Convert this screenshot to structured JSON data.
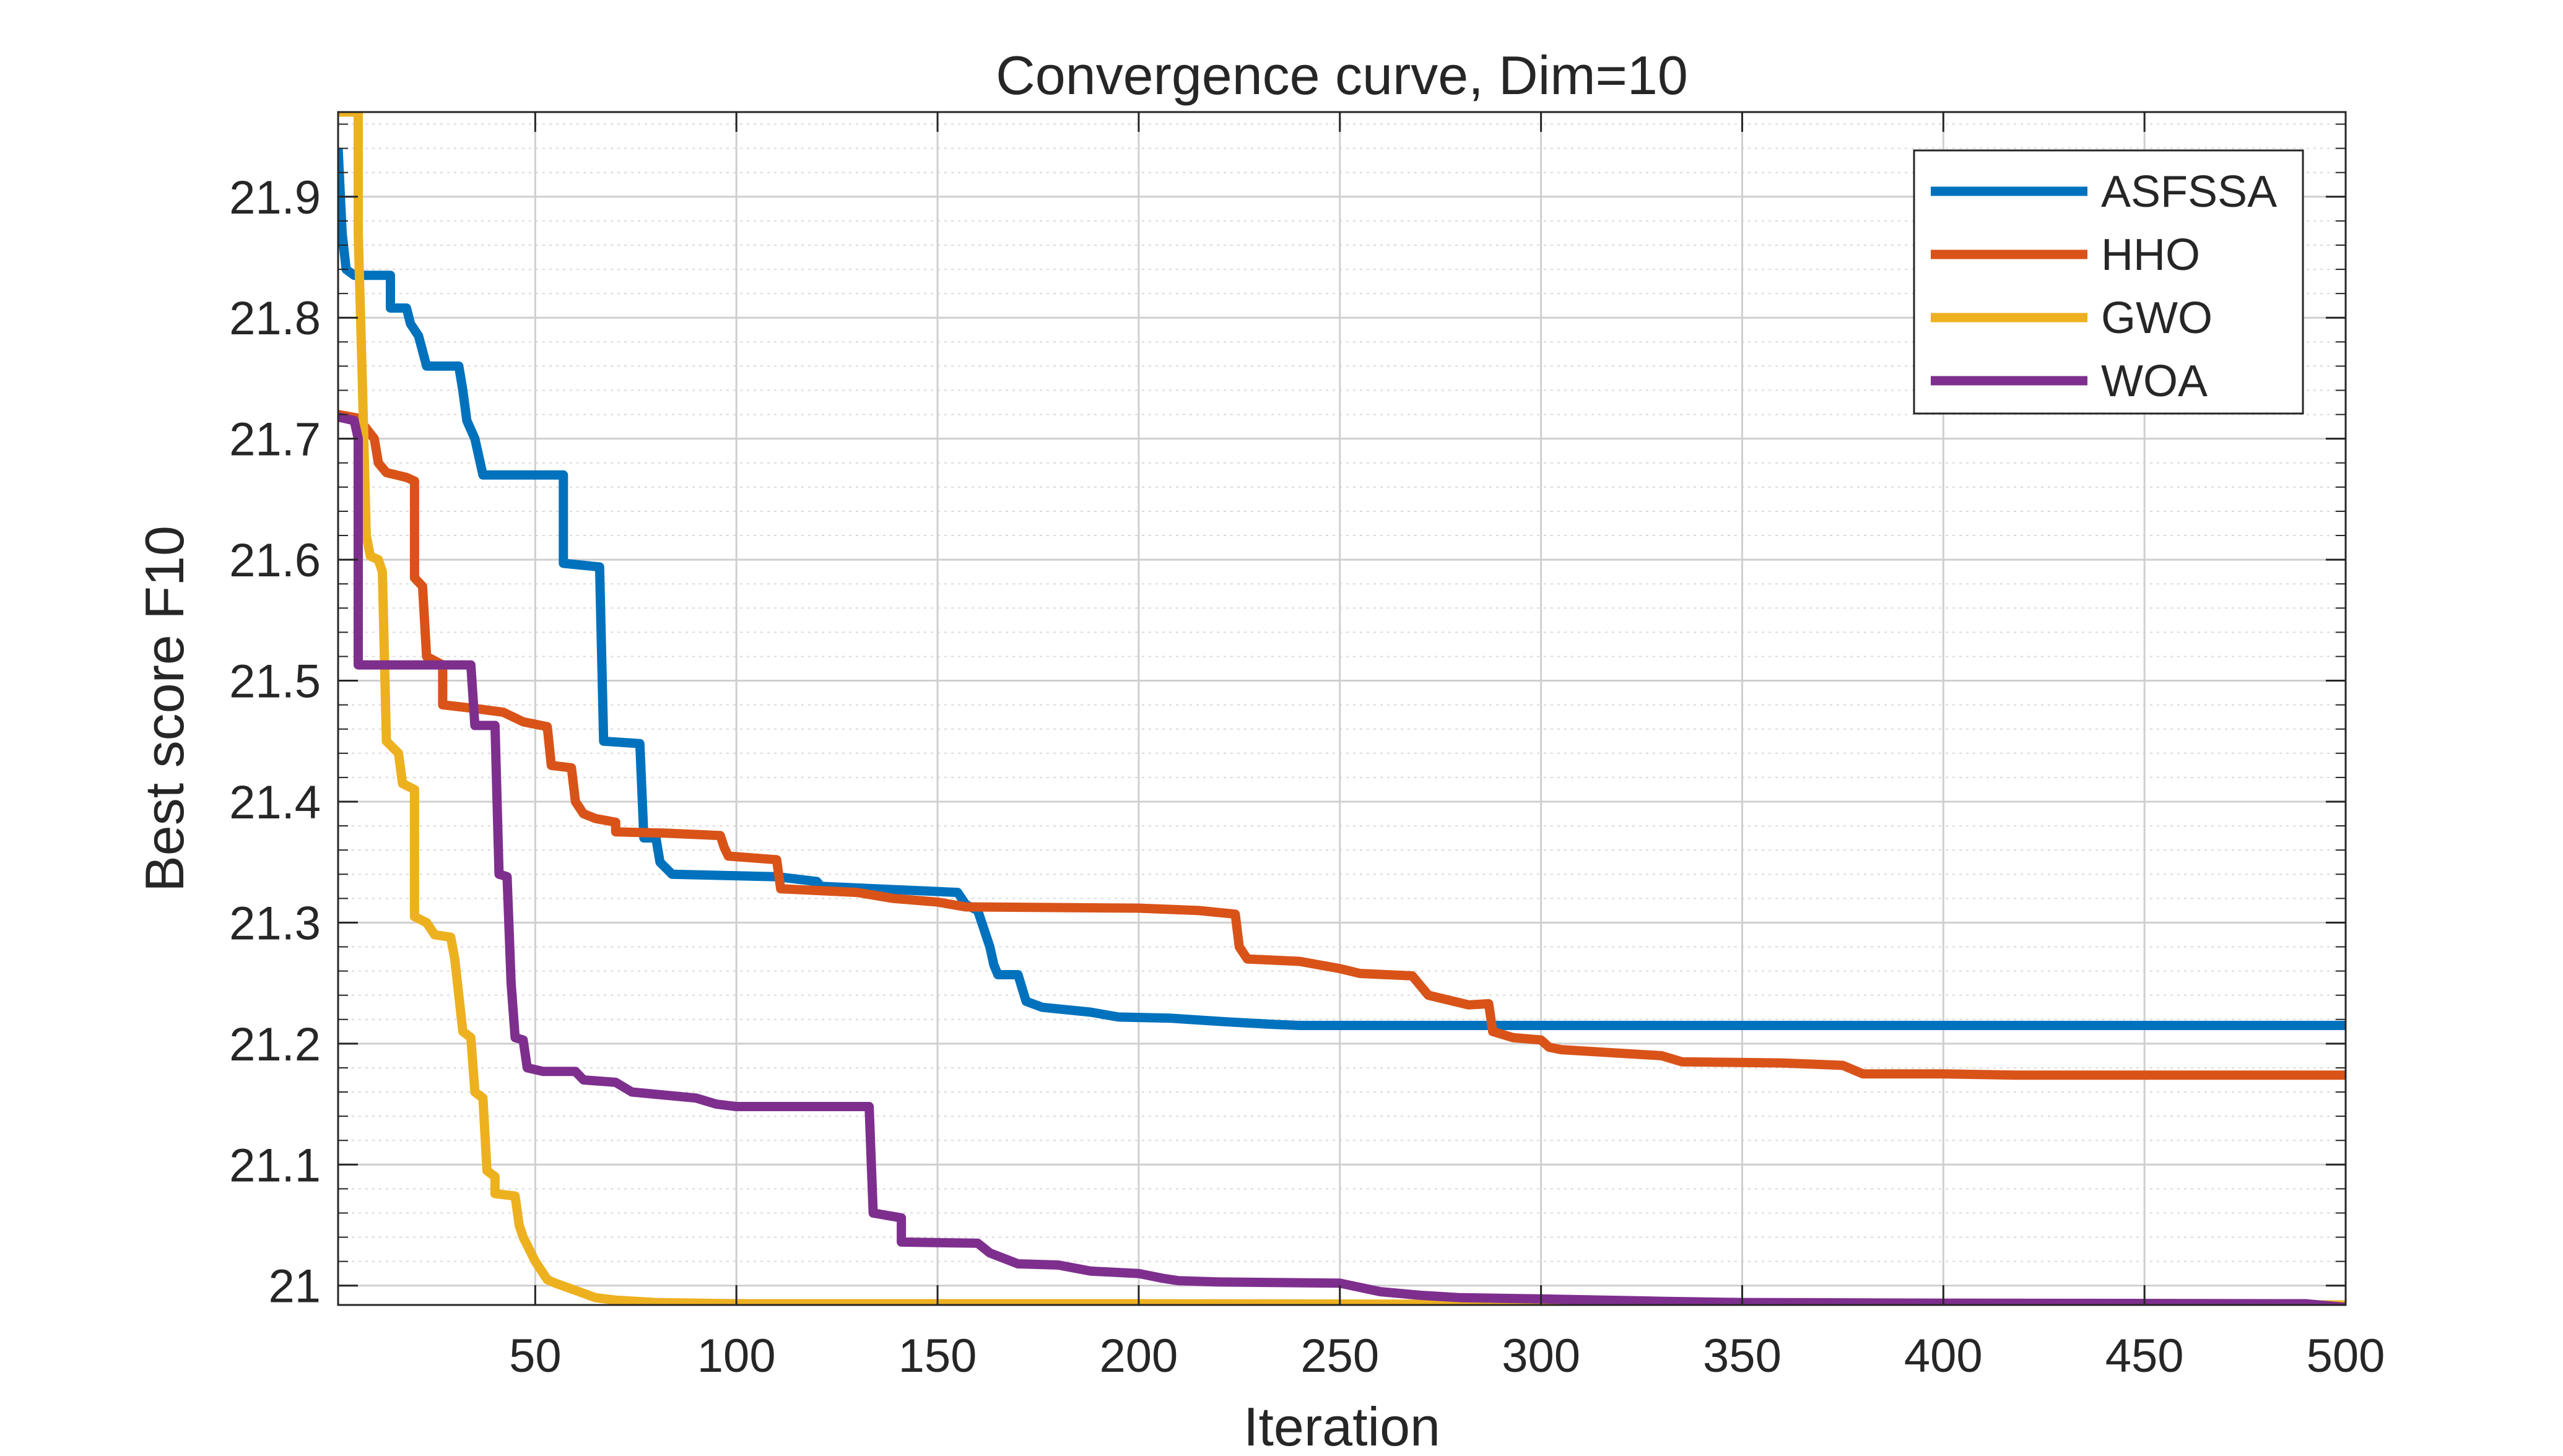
{
  "chart_data": {
    "type": "line",
    "title": "Convergence curve, Dim=10",
    "xlabel": "Iteration",
    "ylabel": "Best score F10",
    "xlim": [
      1,
      500
    ],
    "ylim": [
      20.984,
      21.97
    ],
    "xticks": [
      50,
      100,
      150,
      200,
      250,
      300,
      350,
      400,
      450,
      500
    ],
    "xtick_labels": [
      "50",
      "100",
      "150",
      "200",
      "250",
      "300",
      "350",
      "400",
      "450",
      "500"
    ],
    "yticks": [
      21,
      21.1,
      21.2,
      21.3,
      21.4,
      21.5,
      21.6,
      21.7,
      21.8,
      21.9
    ],
    "ytick_labels": [
      "21",
      "21.1",
      "21.2",
      "21.3",
      "21.4",
      "21.5",
      "21.6",
      "21.7",
      "21.8",
      "21.9"
    ],
    "grid": true,
    "minor_grid_y": true,
    "legend_position": "top-right",
    "series": [
      {
        "name": "ASFSSA",
        "color": "#0072BD",
        "points": [
          [
            1,
            21.94
          ],
          [
            2,
            21.87
          ],
          [
            3,
            21.84
          ],
          [
            5,
            21.835
          ],
          [
            14,
            21.835
          ],
          [
            14,
            21.808
          ],
          [
            18,
            21.808
          ],
          [
            19,
            21.795
          ],
          [
            21,
            21.785
          ],
          [
            23,
            21.76
          ],
          [
            31,
            21.76
          ],
          [
            32,
            21.74
          ],
          [
            33,
            21.715
          ],
          [
            35,
            21.7
          ],
          [
            37,
            21.67
          ],
          [
            57,
            21.67
          ],
          [
            57,
            21.597
          ],
          [
            66,
            21.594
          ],
          [
            67,
            21.45
          ],
          [
            76,
            21.448
          ],
          [
            77,
            21.37
          ],
          [
            80,
            21.37
          ],
          [
            81,
            21.35
          ],
          [
            84,
            21.34
          ],
          [
            110,
            21.338
          ],
          [
            120,
            21.334
          ],
          [
            121,
            21.33
          ],
          [
            155,
            21.325
          ],
          [
            157,
            21.315
          ],
          [
            160,
            21.31
          ],
          [
            163,
            21.28
          ],
          [
            164,
            21.265
          ],
          [
            165,
            21.257
          ],
          [
            170,
            21.257
          ],
          [
            172,
            21.235
          ],
          [
            176,
            21.23
          ],
          [
            188,
            21.226
          ],
          [
            195,
            21.222
          ],
          [
            208,
            21.221
          ],
          [
            222,
            21.218
          ],
          [
            233,
            21.216
          ],
          [
            240,
            21.215
          ],
          [
            500,
            21.215
          ]
        ]
      },
      {
        "name": "HHO",
        "color": "#D95319",
        "points": [
          [
            1,
            21.72
          ],
          [
            6,
            21.717
          ],
          [
            10,
            21.7
          ],
          [
            11,
            21.68
          ],
          [
            13,
            21.672
          ],
          [
            18,
            21.668
          ],
          [
            20,
            21.665
          ],
          [
            20,
            21.585
          ],
          [
            22,
            21.578
          ],
          [
            23,
            21.52
          ],
          [
            27,
            21.513
          ],
          [
            27,
            21.48
          ],
          [
            35,
            21.477
          ],
          [
            42,
            21.474
          ],
          [
            47,
            21.466
          ],
          [
            53,
            21.462
          ],
          [
            54,
            21.43
          ],
          [
            59,
            21.428
          ],
          [
            60,
            21.4
          ],
          [
            62,
            21.39
          ],
          [
            65,
            21.386
          ],
          [
            70,
            21.383
          ],
          [
            70,
            21.375
          ],
          [
            82,
            21.374
          ],
          [
            96,
            21.372
          ],
          [
            97,
            21.362
          ],
          [
            98,
            21.355
          ],
          [
            110,
            21.352
          ],
          [
            111,
            21.328
          ],
          [
            130,
            21.325
          ],
          [
            139,
            21.32
          ],
          [
            150,
            21.317
          ],
          [
            157,
            21.313
          ],
          [
            200,
            21.312
          ],
          [
            215,
            21.31
          ],
          [
            224,
            21.307
          ],
          [
            225,
            21.28
          ],
          [
            227,
            21.27
          ],
          [
            240,
            21.268
          ],
          [
            250,
            21.262
          ],
          [
            255,
            21.258
          ],
          [
            268,
            21.256
          ],
          [
            272,
            21.24
          ],
          [
            282,
            21.232
          ],
          [
            287,
            21.233
          ],
          [
            288,
            21.21
          ],
          [
            293,
            21.205
          ],
          [
            300,
            21.203
          ],
          [
            302,
            21.197
          ],
          [
            305,
            21.195
          ],
          [
            330,
            21.19
          ],
          [
            335,
            21.185
          ],
          [
            360,
            21.184
          ],
          [
            375,
            21.182
          ],
          [
            380,
            21.175
          ],
          [
            400,
            21.175
          ],
          [
            418,
            21.174
          ],
          [
            500,
            21.174
          ]
        ]
      },
      {
        "name": "GWO",
        "color": "#EDB120",
        "points": [
          [
            1,
            21.97
          ],
          [
            6,
            21.97
          ],
          [
            6,
            21.87
          ],
          [
            7,
            21.75
          ],
          [
            8,
            21.62
          ],
          [
            9,
            21.603
          ],
          [
            11,
            21.6
          ],
          [
            12,
            21.59
          ],
          [
            13,
            21.45
          ],
          [
            16,
            21.44
          ],
          [
            17,
            21.415
          ],
          [
            20,
            21.41
          ],
          [
            20,
            21.305
          ],
          [
            23,
            21.3
          ],
          [
            25,
            21.29
          ],
          [
            29,
            21.288
          ],
          [
            30,
            21.27
          ],
          [
            32,
            21.21
          ],
          [
            34,
            21.205
          ],
          [
            35,
            21.16
          ],
          [
            37,
            21.155
          ],
          [
            38,
            21.095
          ],
          [
            40,
            21.09
          ],
          [
            40,
            21.076
          ],
          [
            45,
            21.074
          ],
          [
            46,
            21.05
          ],
          [
            47,
            21.04
          ],
          [
            50,
            21.02
          ],
          [
            53,
            21.005
          ],
          [
            55,
            21.002
          ],
          [
            60,
            20.996
          ],
          [
            65,
            20.99
          ],
          [
            70,
            20.988
          ],
          [
            80,
            20.986
          ],
          [
            100,
            20.985
          ],
          [
            200,
            20.985
          ],
          [
            300,
            20.9845
          ],
          [
            500,
            20.984
          ]
        ]
      },
      {
        "name": "WOA",
        "color": "#7E2F8E",
        "points": [
          [
            1,
            21.718
          ],
          [
            5,
            21.715
          ],
          [
            6,
            21.7
          ],
          [
            6,
            21.513
          ],
          [
            34,
            21.513
          ],
          [
            35,
            21.463
          ],
          [
            40,
            21.463
          ],
          [
            41,
            21.34
          ],
          [
            43,
            21.338
          ],
          [
            44,
            21.25
          ],
          [
            45,
            21.205
          ],
          [
            47,
            21.203
          ],
          [
            48,
            21.18
          ],
          [
            52,
            21.177
          ],
          [
            60,
            21.177
          ],
          [
            62,
            21.17
          ],
          [
            70,
            21.168
          ],
          [
            74,
            21.16
          ],
          [
            90,
            21.155
          ],
          [
            95,
            21.15
          ],
          [
            100,
            21.148
          ],
          [
            133,
            21.148
          ],
          [
            134,
            21.06
          ],
          [
            141,
            21.056
          ],
          [
            141,
            21.036
          ],
          [
            160,
            21.035
          ],
          [
            163,
            21.027
          ],
          [
            170,
            21.018
          ],
          [
            180,
            21.017
          ],
          [
            188,
            21.012
          ],
          [
            200,
            21.01
          ],
          [
            206,
            21.006
          ],
          [
            210,
            21.004
          ],
          [
            220,
            21.003
          ],
          [
            250,
            21.002
          ],
          [
            260,
            20.995
          ],
          [
            270,
            20.992
          ],
          [
            280,
            20.99
          ],
          [
            300,
            20.989
          ],
          [
            330,
            20.987
          ],
          [
            350,
            20.986
          ],
          [
            400,
            20.9855
          ],
          [
            490,
            20.985
          ],
          [
            500,
            20.982
          ]
        ]
      }
    ]
  }
}
